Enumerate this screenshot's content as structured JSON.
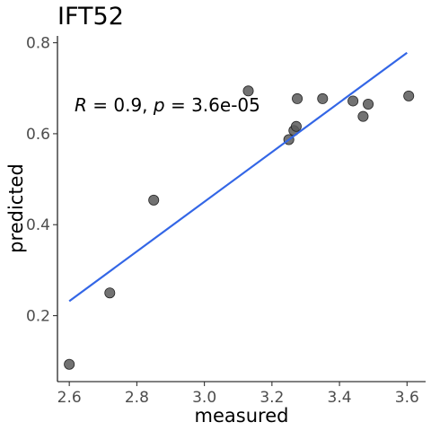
{
  "chart_data": {
    "type": "scatter",
    "title": "IFT52",
    "xlabel": "measured",
    "ylabel": "predicted",
    "xlim": [
      2.565,
      3.655
    ],
    "ylim": [
      0.055,
      0.815
    ],
    "x_ticks": [
      2.6,
      2.8,
      3.0,
      3.2,
      3.4,
      3.6
    ],
    "x_tick_labels": [
      "2.6",
      "2.8",
      "3.0",
      "3.2",
      "3.4",
      "3.6"
    ],
    "y_ticks": [
      0.2,
      0.4,
      0.6,
      0.8
    ],
    "y_tick_labels": [
      "0.2",
      "0.4",
      "0.6",
      "0.8"
    ],
    "grid": false,
    "points": [
      {
        "x": 2.6,
        "y": 0.093
      },
      {
        "x": 2.72,
        "y": 0.25
      },
      {
        "x": 2.85,
        "y": 0.454
      },
      {
        "x": 3.13,
        "y": 0.694
      },
      {
        "x": 3.25,
        "y": 0.587
      },
      {
        "x": 3.265,
        "y": 0.607
      },
      {
        "x": 3.272,
        "y": 0.616
      },
      {
        "x": 3.275,
        "y": 0.677
      },
      {
        "x": 3.35,
        "y": 0.677
      },
      {
        "x": 3.44,
        "y": 0.672
      },
      {
        "x": 3.47,
        "y": 0.638
      },
      {
        "x": 3.485,
        "y": 0.665
      },
      {
        "x": 3.605,
        "y": 0.683
      }
    ],
    "trend_line": {
      "x": [
        2.6,
        3.6
      ],
      "y": [
        0.232,
        0.778
      ]
    },
    "annotation": {
      "r_label": "R",
      "r_text": " = 0.9, ",
      "p_label": "p",
      "p_text": " = 3.6e-05"
    },
    "colors": {
      "points": "#595959",
      "point_outline": "#262626",
      "trend_line": "#3366e6",
      "axis": "#000000"
    }
  }
}
